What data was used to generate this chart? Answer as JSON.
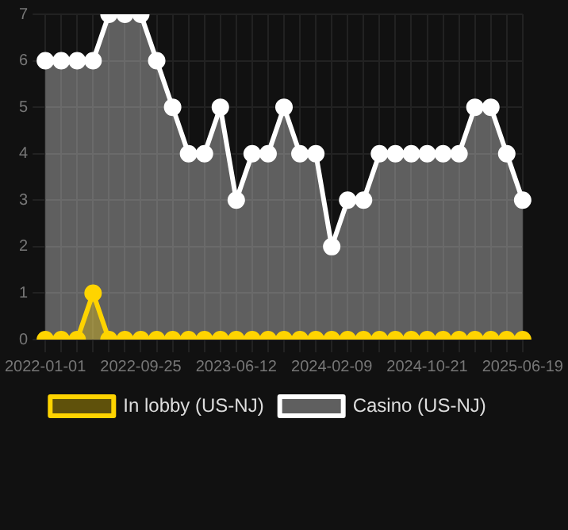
{
  "chart_data": {
    "type": "area",
    "categories": [
      "2022-01-01",
      null,
      null,
      null,
      null,
      null,
      "2022-09-25",
      null,
      null,
      null,
      null,
      null,
      "2023-06-12",
      null,
      null,
      null,
      null,
      null,
      "2024-02-09",
      null,
      null,
      null,
      null,
      null,
      "2024-10-21",
      null,
      null,
      null,
      null,
      null,
      "2025-06-19"
    ],
    "series": [
      {
        "name": "In lobby (US-NJ)",
        "color": "#ffd400",
        "values": [
          0,
          0,
          0,
          1,
          0,
          0,
          0,
          0,
          0,
          0,
          0,
          0,
          0,
          0,
          0,
          0,
          0,
          0,
          0,
          0,
          0,
          0,
          0,
          0,
          0,
          0,
          0,
          0,
          0,
          0,
          0
        ]
      },
      {
        "name": "Casino (US-NJ)",
        "color": "#ffffff",
        "values": [
          6,
          6,
          6,
          6,
          7,
          7,
          7,
          6,
          5,
          4,
          4,
          5,
          3,
          4,
          4,
          5,
          4,
          4,
          2,
          3,
          3,
          4,
          4,
          4,
          4,
          4,
          4,
          5,
          5,
          4,
          3
        ]
      }
    ],
    "ylim": [
      0,
      7
    ],
    "yticks": [
      0,
      1,
      2,
      3,
      4,
      5,
      6,
      7
    ],
    "grid": true,
    "legend": "bottom",
    "marker": "circle"
  }
}
